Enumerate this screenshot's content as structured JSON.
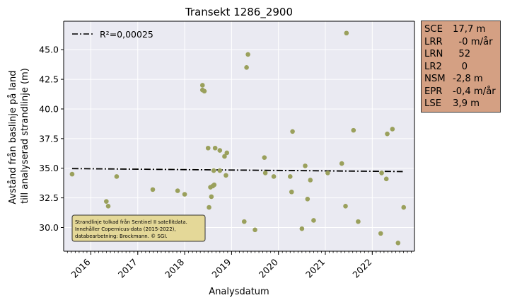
{
  "chart_data": {
    "type": "scatter",
    "title": "Transekt 1286_2900",
    "xlabel": "Analysdatum",
    "ylabel_line1": "Avstånd från baslinje på land",
    "ylabel_line2": "till analyserad strandlinje (m)",
    "xlim": [
      2015.42,
      2022.9
    ],
    "ylim": [
      28.0,
      47.4
    ],
    "x_ticks": [
      2016,
      2017,
      2018,
      2019,
      2020,
      2021,
      2022
    ],
    "x_tick_labels": [
      "2016",
      "2017",
      "2018",
      "2019",
      "2020",
      "2021",
      "2022"
    ],
    "y_ticks": [
      30.0,
      32.5,
      35.0,
      37.5,
      40.0,
      42.5,
      45.0
    ],
    "y_tick_labels": [
      "30.0",
      "32.5",
      "35.0",
      "37.5",
      "40.0",
      "42.5",
      "45.0"
    ],
    "grid": true,
    "legend": {
      "position": "top-left",
      "label": "R²=0,00025"
    },
    "regression_line": {
      "x": [
        2015.6,
        2022.65
      ],
      "y": [
        34.97,
        34.72
      ]
    },
    "points": [
      {
        "x": 2015.6,
        "y": 34.5
      },
      {
        "x": 2016.33,
        "y": 32.2
      },
      {
        "x": 2016.37,
        "y": 31.8
      },
      {
        "x": 2016.4,
        "y": 30.7
      },
      {
        "x": 2016.55,
        "y": 34.3
      },
      {
        "x": 2017.32,
        "y": 33.2
      },
      {
        "x": 2017.85,
        "y": 33.1
      },
      {
        "x": 2018.0,
        "y": 32.8
      },
      {
        "x": 2018.38,
        "y": 42.0
      },
      {
        "x": 2018.38,
        "y": 41.6
      },
      {
        "x": 2018.42,
        "y": 41.5
      },
      {
        "x": 2018.5,
        "y": 36.7
      },
      {
        "x": 2018.52,
        "y": 31.7
      },
      {
        "x": 2018.55,
        "y": 33.4
      },
      {
        "x": 2018.57,
        "y": 32.6
      },
      {
        "x": 2018.6,
        "y": 33.5
      },
      {
        "x": 2018.63,
        "y": 33.6
      },
      {
        "x": 2018.62,
        "y": 34.8
      },
      {
        "x": 2018.65,
        "y": 36.7
      },
      {
        "x": 2018.75,
        "y": 36.5
      },
      {
        "x": 2018.75,
        "y": 34.8
      },
      {
        "x": 2018.85,
        "y": 36.0
      },
      {
        "x": 2018.88,
        "y": 34.4
      },
      {
        "x": 2018.9,
        "y": 36.3
      },
      {
        "x": 2019.27,
        "y": 30.5
      },
      {
        "x": 2019.32,
        "y": 43.5
      },
      {
        "x": 2019.35,
        "y": 44.6
      },
      {
        "x": 2019.5,
        "y": 29.8
      },
      {
        "x": 2019.7,
        "y": 35.9
      },
      {
        "x": 2019.72,
        "y": 34.6
      },
      {
        "x": 2019.9,
        "y": 34.3
      },
      {
        "x": 2020.25,
        "y": 34.3
      },
      {
        "x": 2020.28,
        "y": 33.0
      },
      {
        "x": 2020.3,
        "y": 38.1
      },
      {
        "x": 2020.5,
        "y": 29.9
      },
      {
        "x": 2020.57,
        "y": 35.2
      },
      {
        "x": 2020.62,
        "y": 32.4
      },
      {
        "x": 2020.68,
        "y": 34.0
      },
      {
        "x": 2020.75,
        "y": 30.6
      },
      {
        "x": 2021.05,
        "y": 34.6
      },
      {
        "x": 2021.35,
        "y": 35.4
      },
      {
        "x": 2021.43,
        "y": 31.8
      },
      {
        "x": 2021.45,
        "y": 46.4
      },
      {
        "x": 2021.6,
        "y": 38.2
      },
      {
        "x": 2021.7,
        "y": 30.5
      },
      {
        "x": 2022.18,
        "y": 29.5
      },
      {
        "x": 2022.2,
        "y": 34.6
      },
      {
        "x": 2022.3,
        "y": 34.1
      },
      {
        "x": 2022.32,
        "y": 37.9
      },
      {
        "x": 2022.43,
        "y": 38.3
      },
      {
        "x": 2022.55,
        "y": 28.7
      },
      {
        "x": 2022.67,
        "y": 31.7
      }
    ],
    "annotation": [
      "Strandlinje tolkad från Sentinel II satellitdata.",
      "Innehåller Copernicus-data (2015-2022),",
      "databearbetning: Brockmann. © SGI."
    ],
    "stats": [
      {
        "key": "SCE",
        "value": "17,7 m"
      },
      {
        "key": "LRR",
        "value": "  -0 m/år"
      },
      {
        "key": "LRN",
        "value": "  52"
      },
      {
        "key": "LR2",
        "value": "   0"
      },
      {
        "key": "NSM",
        "value": "-2,8 m"
      },
      {
        "key": "EPR",
        "value": "-0,4 m/år"
      },
      {
        "key": "LSE",
        "value": "3,9 m"
      }
    ],
    "colors": {
      "plot_background": "#eaeaf2",
      "point": "#9aa05c",
      "line": "#000000",
      "stats_box": "#d4a083",
      "annotation_box": "#e4d898",
      "grid": "#ffffff"
    }
  }
}
